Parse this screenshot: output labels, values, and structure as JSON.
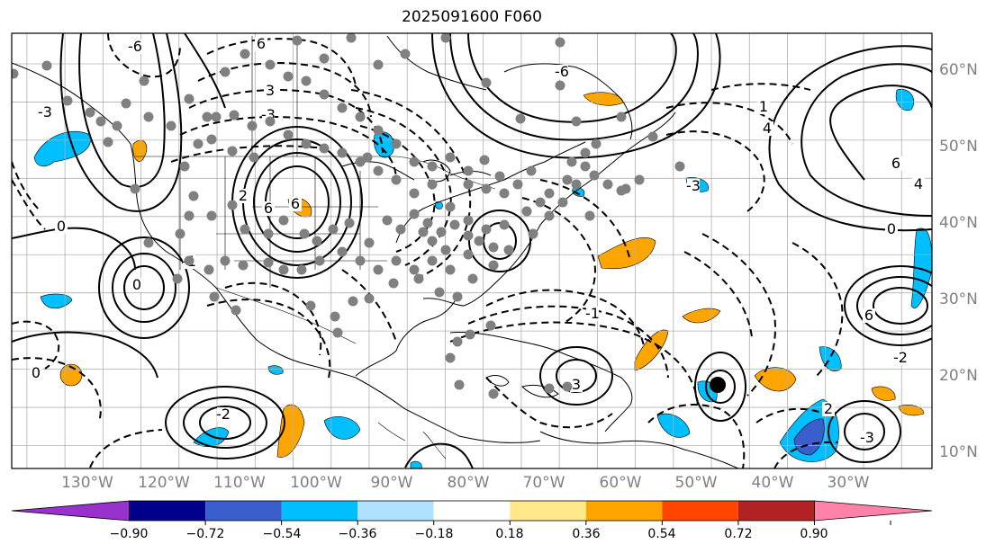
{
  "title": "2025091600 F060",
  "map": {
    "projection": "PlateCarree",
    "extent_lon": [
      -137,
      -16
    ],
    "extent_lat": [
      7,
      64
    ],
    "lon_ticks": [
      {
        "value": -130,
        "label": "130°W"
      },
      {
        "value": -120,
        "label": "120°W"
      },
      {
        "value": -110,
        "label": "110°W"
      },
      {
        "value": -100,
        "label": "100°W"
      },
      {
        "value": -90,
        "label": "90°W"
      },
      {
        "value": -80,
        "label": "80°W"
      },
      {
        "value": -70,
        "label": "70°W"
      },
      {
        "value": -60,
        "label": "60°W"
      },
      {
        "value": -50,
        "label": "50°W"
      },
      {
        "value": -40,
        "label": "40°W"
      },
      {
        "value": -30,
        "label": "30°W"
      }
    ],
    "lat_ticks": [
      {
        "value": 60,
        "label": "60°N"
      },
      {
        "value": 50,
        "label": "50°N"
      },
      {
        "value": 40,
        "label": "40°N"
      },
      {
        "value": 30,
        "label": "30°N"
      },
      {
        "value": 20,
        "label": "20°N"
      },
      {
        "value": 10,
        "label": "10°N"
      }
    ],
    "grid": true,
    "contour_labels": [
      "6",
      "-6",
      "3",
      "-3",
      "0",
      "2",
      "-2",
      "1",
      "-1",
      "4"
    ],
    "colors": {
      "station_marker": "#808080",
      "storm_marker": "#000000",
      "grid": "#b0b0b0",
      "gridlabel": "#808080"
    }
  },
  "colorbar": {
    "extend": "both",
    "boundaries": [
      -0.9,
      -0.72,
      -0.54,
      -0.36,
      -0.18,
      0.18,
      0.36,
      0.54,
      0.72,
      0.9
    ],
    "labels": [
      "−0.90",
      "−0.72",
      "−0.54",
      "−0.36",
      "−0.18",
      "0.18",
      "0.36",
      "0.54",
      "0.72",
      "0.90"
    ],
    "colors": [
      "#9932cc",
      "#00008b",
      "#3a5fcd",
      "#00bfff",
      "#b0e2ff",
      "#ffffff",
      "#ffe98a",
      "#ffa500",
      "#ff4500",
      "#b22222",
      "#ff82ab"
    ]
  }
}
